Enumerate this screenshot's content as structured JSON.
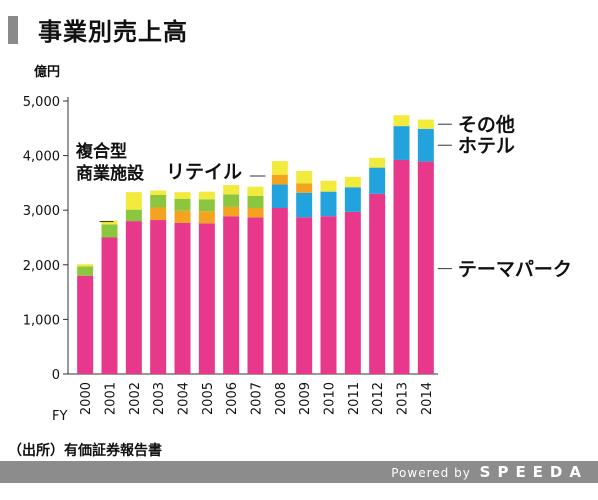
{
  "title": "事業別売上高",
  "source": "（出所）有価証券報告書",
  "footer": {
    "powered_by": "Powered by",
    "brand": "SPEEDA"
  },
  "chart_data": {
    "type": "bar",
    "stacked": true,
    "ylabel": "億円",
    "xlabel": "FY",
    "ylim": [
      0,
      5000
    ],
    "yticks": [
      0,
      1000,
      2000,
      3000,
      4000,
      5000
    ],
    "ytick_labels": [
      "0",
      "1,000",
      "2,000",
      "3,000",
      "4,000",
      "5,000"
    ],
    "categories": [
      "2000",
      "2001",
      "2002",
      "2003",
      "2004",
      "2005",
      "2006",
      "2007",
      "2008",
      "2009",
      "2010",
      "2011",
      "2012",
      "2013",
      "2014"
    ],
    "series": [
      {
        "name": "テーマパーク",
        "color": "#e8388c",
        "values": [
          1800,
          2500,
          2800,
          2820,
          2770,
          2760,
          2890,
          2870,
          3040,
          2870,
          2890,
          2970,
          3300,
          3920,
          3890
        ]
      },
      {
        "name": "ホテル",
        "color": "#22a3dd",
        "values": [
          0,
          0,
          0,
          0,
          0,
          0,
          0,
          0,
          430,
          450,
          450,
          450,
          480,
          620,
          600
        ]
      },
      {
        "name": "リテイル",
        "color": "#f4a31e",
        "values": [
          0,
          0,
          0,
          230,
          220,
          220,
          170,
          170,
          180,
          170,
          0,
          0,
          0,
          0,
          0
        ]
      },
      {
        "name": "複合型商業施設",
        "color": "#8cc63e",
        "values": [
          170,
          240,
          210,
          230,
          220,
          220,
          230,
          220,
          0,
          0,
          0,
          0,
          0,
          0,
          0
        ]
      },
      {
        "name": "その他",
        "color": "#f2ea3c",
        "values": [
          40,
          70,
          320,
          80,
          120,
          140,
          170,
          170,
          250,
          230,
          200,
          190,
          180,
          200,
          170
        ]
      }
    ],
    "labels": [
      {
        "series": "複合型商業施設",
        "lines": [
          "複合型",
          "商業施設"
        ]
      },
      {
        "series": "リテイル",
        "lines": [
          "リテイル"
        ]
      },
      {
        "series": "その他",
        "lines": [
          "その他"
        ]
      },
      {
        "series": "ホテル",
        "lines": [
          "ホテル"
        ]
      },
      {
        "series": "テーマパーク",
        "lines": [
          "テーマパーク"
        ]
      }
    ]
  }
}
